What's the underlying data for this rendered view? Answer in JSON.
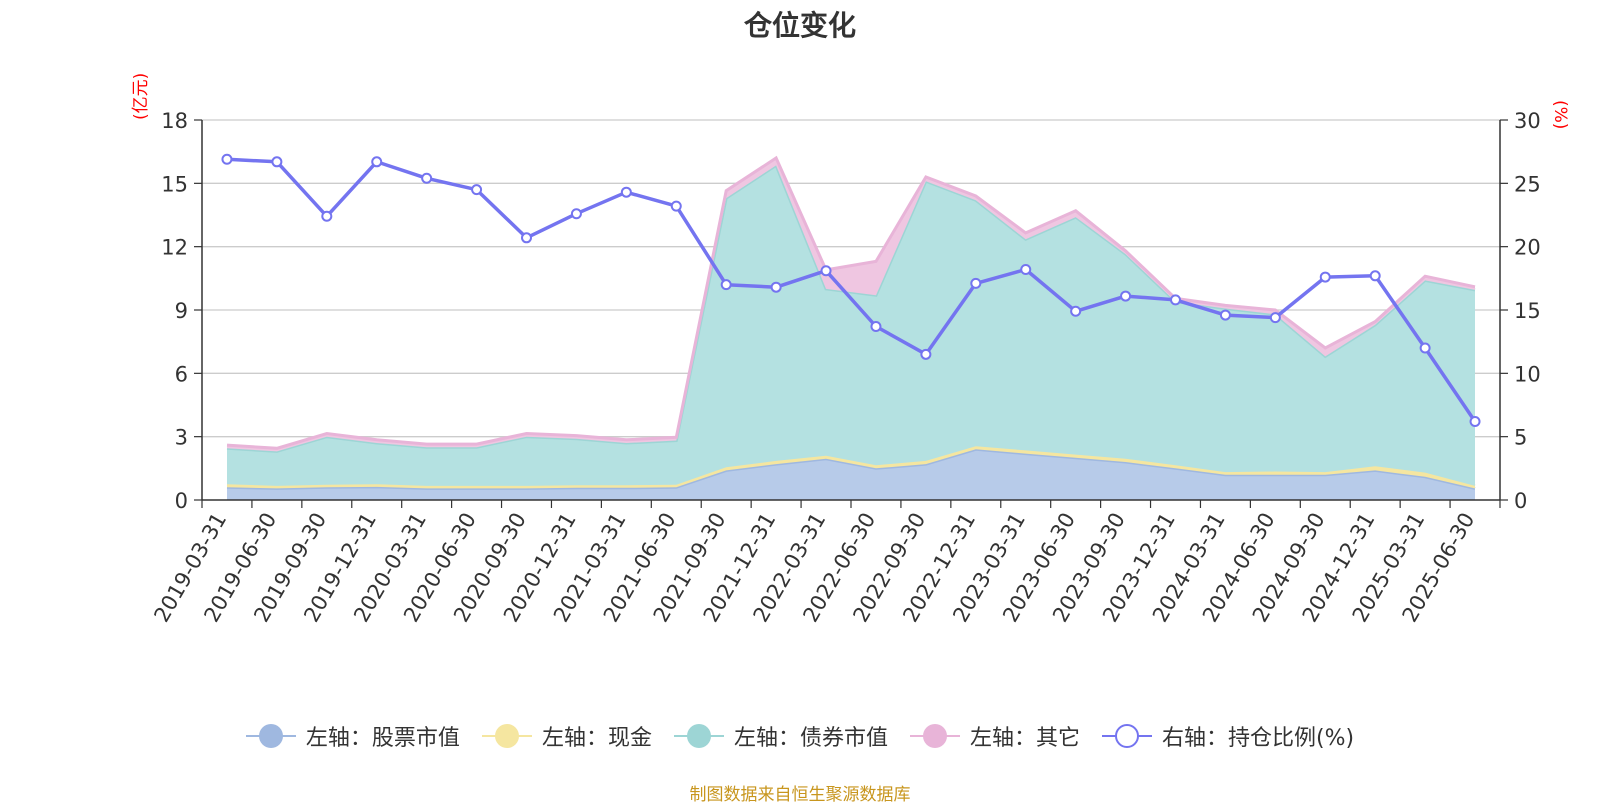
{
  "chart_data": {
    "type": "area",
    "title": "仓位变化",
    "y_left_unit": "(亿元)",
    "y_right_unit": "(%)",
    "source": "制图数据来自恒生聚源数据库",
    "categories": [
      "2019-03-31",
      "2019-06-30",
      "2019-09-30",
      "2019-12-31",
      "2020-03-31",
      "2020-06-30",
      "2020-09-30",
      "2020-12-31",
      "2021-03-31",
      "2021-06-30",
      "2021-09-30",
      "2021-12-31",
      "2022-03-31",
      "2022-06-30",
      "2022-09-30",
      "2022-12-31",
      "2023-03-31",
      "2023-06-30",
      "2023-09-30",
      "2023-12-31",
      "2024-03-31",
      "2024-06-30",
      "2024-09-30",
      "2024-12-31",
      "2025-03-31",
      "2025-06-30"
    ],
    "ylim_left": [
      0,
      18
    ],
    "yticks_left": [
      0,
      3,
      6,
      9,
      12,
      15,
      18
    ],
    "ylim_right": [
      0,
      30
    ],
    "yticks_right": [
      0,
      5,
      10,
      15,
      20,
      25,
      30
    ],
    "grid": true,
    "legend_position": "bottom",
    "stacked_series": [
      {
        "name": "左轴：股票市值",
        "color": "#9fb8e0",
        "fill": "#b7cbe9",
        "values": [
          0.6,
          0.55,
          0.6,
          0.62,
          0.55,
          0.55,
          0.55,
          0.58,
          0.58,
          0.6,
          1.4,
          1.7,
          1.95,
          1.5,
          1.7,
          2.4,
          2.2,
          2.0,
          1.8,
          1.5,
          1.2,
          1.2,
          1.2,
          1.4,
          1.1,
          0.55
        ]
      },
      {
        "name": "左轴：现金",
        "color": "#f5e6a0",
        "fill": "#f5e6a0",
        "values": [
          0.15,
          0.12,
          0.12,
          0.13,
          0.12,
          0.12,
          0.12,
          0.12,
          0.12,
          0.12,
          0.15,
          0.15,
          0.15,
          0.15,
          0.15,
          0.15,
          0.15,
          0.15,
          0.15,
          0.15,
          0.12,
          0.15,
          0.12,
          0.2,
          0.2,
          0.12
        ]
      },
      {
        "name": "左轴：债券市值",
        "color": "#9dd5d5",
        "fill": "#b4e1e1",
        "values": [
          1.7,
          1.63,
          2.28,
          1.95,
          1.83,
          1.83,
          2.33,
          2.2,
          2.0,
          2.1,
          12.75,
          14.0,
          7.9,
          8.05,
          13.25,
          11.65,
          10.0,
          11.25,
          9.7,
          7.75,
          7.75,
          7.45,
          5.48,
          6.7,
          9.1,
          9.28
        ]
      },
      {
        "name": "左轴：其它",
        "color": "#e8b4d8",
        "fill": "#efc6e1",
        "values": [
          0.15,
          0.15,
          0.15,
          0.15,
          0.15,
          0.15,
          0.15,
          0.15,
          0.15,
          0.15,
          0.35,
          0.35,
          0.9,
          1.6,
          0.2,
          0.2,
          0.3,
          0.3,
          0.15,
          0.15,
          0.15,
          0.2,
          0.4,
          0.15,
          0.2,
          0.15
        ]
      }
    ],
    "line_series": {
      "name": "右轴：持仓比例(%)",
      "color": "#7474f0",
      "axis": "right",
      "values": [
        26.9,
        26.7,
        22.4,
        26.7,
        25.4,
        24.5,
        20.7,
        22.6,
        24.3,
        23.2,
        17.0,
        16.8,
        18.1,
        13.7,
        11.5,
        17.1,
        18.2,
        14.9,
        16.1,
        15.8,
        14.6,
        14.4,
        17.6,
        17.7,
        12.0,
        6.2
      ]
    }
  }
}
